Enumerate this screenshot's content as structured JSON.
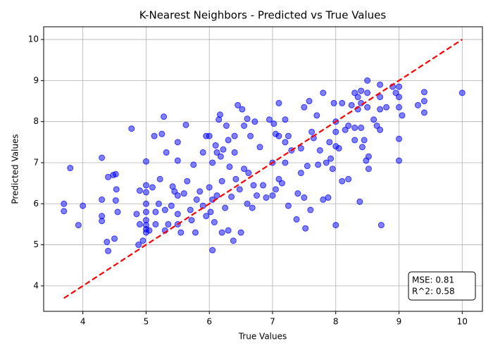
{
  "chart_data": {
    "type": "scatter",
    "title": "K-Nearest Neighbors - Predicted vs True Values",
    "x_label": "True Values",
    "y_label": "Predicted Values",
    "xlim": [
      3.38,
      10.32
    ],
    "ylim": [
      3.38,
      10.31
    ],
    "xticks": [
      4,
      5,
      6,
      7,
      8,
      9,
      10
    ],
    "yticks": [
      4,
      5,
      6,
      7,
      8,
      9,
      10
    ],
    "grid": true,
    "color": "#0000ff",
    "x": [
      3.7,
      3.7,
      3.8,
      3.93,
      4.0,
      4.3,
      4.3,
      4.3,
      4.3,
      4.38,
      4.4,
      4.4,
      4.48,
      4.52,
      4.52,
      4.53,
      4.5,
      4.55,
      4.77,
      4.85,
      4.88,
      4.9,
      4.9,
      4.95,
      5.0,
      5.0,
      5.0,
      5.0,
      5.0,
      5.0,
      5.0,
      5.0,
      5.0,
      5.05,
      5.1,
      5.13,
      5.15,
      5.15,
      5.2,
      5.22,
      5.25,
      5.28,
      5.3,
      5.3,
      5.32,
      5.35,
      5.4,
      5.42,
      5.45,
      5.5,
      5.5,
      5.5,
      5.5,
      5.5,
      5.55,
      5.6,
      5.63,
      5.65,
      5.7,
      5.72,
      5.75,
      5.78,
      5.8,
      5.85,
      5.9,
      5.9,
      5.95,
      5.95,
      6.0,
      6.0,
      6.02,
      6.05,
      6.05,
      6.05,
      6.08,
      6.1,
      6.12,
      6.12,
      6.15,
      6.17,
      6.18,
      6.2,
      6.2,
      6.22,
      6.25,
      6.27,
      6.3,
      6.3,
      6.32,
      6.35,
      6.38,
      6.4,
      6.4,
      6.42,
      6.45,
      6.48,
      6.5,
      6.52,
      6.55,
      6.55,
      6.6,
      6.6,
      6.62,
      6.65,
      6.68,
      6.7,
      6.72,
      6.75,
      6.8,
      6.85,
      6.9,
      6.95,
      7.0,
      7.0,
      7.02,
      7.05,
      7.05,
      7.1,
      7.1,
      7.1,
      7.15,
      7.2,
      7.2,
      7.2,
      7.25,
      7.25,
      7.3,
      7.38,
      7.4,
      7.45,
      7.45,
      7.5,
      7.5,
      7.52,
      7.55,
      7.58,
      7.6,
      7.62,
      7.65,
      7.7,
      7.72,
      7.75,
      7.8,
      7.8,
      7.85,
      7.88,
      7.9,
      7.92,
      7.95,
      7.97,
      8.0,
      8.0,
      8.0,
      8.0,
      8.05,
      8.1,
      8.1,
      8.15,
      8.2,
      8.2,
      8.25,
      8.3,
      8.3,
      8.3,
      8.35,
      8.35,
      8.38,
      8.4,
      8.4,
      8.4,
      8.42,
      8.45,
      8.48,
      8.5,
      8.5,
      8.5,
      8.52,
      8.52,
      8.6,
      8.65,
      8.7,
      8.7,
      8.7,
      8.7,
      8.72,
      8.8,
      8.9,
      8.95,
      9.0,
      9.0,
      9.0,
      9.0,
      9.0,
      9.05,
      9.3,
      9.4,
      9.4,
      9.4,
      10.0
    ],
    "values": [
      6.0,
      5.82,
      6.87,
      5.48,
      5.95,
      7.12,
      6.1,
      5.7,
      5.58,
      5.07,
      4.85,
      6.65,
      6.7,
      6.72,
      6.08,
      6.35,
      5.15,
      5.8,
      7.83,
      5.75,
      5.0,
      6.32,
      5.5,
      5.1,
      7.03,
      6.45,
      6.28,
      6.0,
      5.8,
      5.6,
      5.48,
      5.38,
      5.3,
      5.35,
      6.4,
      7.65,
      5.5,
      5.8,
      6.0,
      6.6,
      7.7,
      8.12,
      5.85,
      5.35,
      7.25,
      5.5,
      5.95,
      6.42,
      6.3,
      7.5,
      7.05,
      6.2,
      5.75,
      5.5,
      5.3,
      6.25,
      7.92,
      6.55,
      5.85,
      5.6,
      6.95,
      5.3,
      6.1,
      6.3,
      7.25,
      5.95,
      5.7,
      7.65,
      6.4,
      7.65,
      5.8,
      7.0,
      6.1,
      4.87,
      5.55,
      7.42,
      7.25,
      6.2,
      8.05,
      8.17,
      7.15,
      6.55,
      5.3,
      7.32,
      5.9,
      7.9,
      7.55,
      5.35,
      6.9,
      6.17,
      5.1,
      7.65,
      7.25,
      6.6,
      8.4,
      6.35,
      5.3,
      8.3,
      7.9,
      6.85,
      8.07,
      6.0,
      6.75,
      7.65,
      5.9,
      6.45,
      8.0,
      6.2,
      7.38,
      6.45,
      6.15,
      8.05,
      7.0,
      6.2,
      7.95,
      7.7,
      6.35,
      8.45,
      7.65,
      6.6,
      6.5,
      8.05,
      7.5,
      7.0,
      5.95,
      7.65,
      7.3,
      5.62,
      6.25,
      7.35,
      6.75,
      8.35,
      6.15,
      5.4,
      6.92,
      8.5,
      5.85,
      7.75,
      7.6,
      8.15,
      6.95,
      7.3,
      8.7,
      6.1,
      7.0,
      6.15,
      7.5,
      7.1,
      6.85,
      8.45,
      8.0,
      7.75,
      7.4,
      5.48,
      7.35,
      8.45,
      6.55,
      7.8,
      7.9,
      6.6,
      8.4,
      8.7,
      7.85,
      7.55,
      8.6,
      8.3,
      6.05,
      8.75,
      8.45,
      7.85,
      7.38,
      7.55,
      7.05,
      9.0,
      8.7,
      8.35,
      7.15,
      6.85,
      8.05,
      7.9,
      8.9,
      8.6,
      8.3,
      7.8,
      5.48,
      8.35,
      8.85,
      8.7,
      8.85,
      8.6,
      8.35,
      7.58,
      7.05,
      8.15,
      8.4,
      8.72,
      8.5,
      8.22,
      8.7
    ],
    "reference_line": {
      "color": "#ff0000",
      "x": [
        3.7,
        10
      ],
      "y": [
        3.7,
        10
      ]
    },
    "annotation": [
      "MSE: 0.81",
      "R^2: 0.58"
    ]
  }
}
